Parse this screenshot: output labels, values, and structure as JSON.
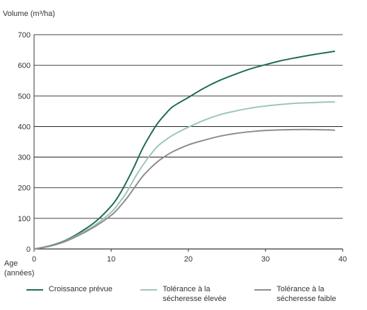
{
  "chart_data": {
    "type": "line",
    "ylabel": "Volume (m³/ha)",
    "xlabel": "Age\n(années)",
    "xlim": [
      0,
      40
    ],
    "ylim": [
      0,
      700
    ],
    "x_ticks": [
      "0",
      "10",
      "20",
      "30",
      "40"
    ],
    "y_ticks": [
      "0",
      "100",
      "200",
      "300",
      "400",
      "500",
      "600",
      "700"
    ],
    "grid": "horizontal",
    "legend_position": "bottom",
    "series": [
      {
        "name": "Croissance prévue",
        "color": "#1f6b53",
        "x": [
          0,
          2,
          4,
          6,
          8,
          10,
          11,
          12,
          13,
          14,
          15,
          16,
          17,
          18,
          20,
          22,
          24,
          26,
          28,
          30,
          32,
          34,
          36,
          38,
          39
        ],
        "y": [
          0,
          10,
          27,
          55,
          90,
          140,
          175,
          220,
          270,
          325,
          370,
          410,
          440,
          465,
          495,
          525,
          550,
          570,
          588,
          602,
          615,
          625,
          634,
          642,
          646
        ]
      },
      {
        "name": "Tolérance à la\nsécheresse élevée",
        "color": "#9dc5b8",
        "x": [
          0,
          2,
          4,
          6,
          8,
          10,
          11,
          12,
          13,
          14,
          15,
          16,
          17,
          18,
          20,
          22,
          24,
          26,
          28,
          30,
          32,
          34,
          36,
          38,
          39
        ],
        "y": [
          0,
          9,
          25,
          50,
          80,
          120,
          150,
          185,
          230,
          270,
          305,
          335,
          355,
          372,
          398,
          420,
          438,
          450,
          460,
          467,
          472,
          476,
          478,
          480,
          480
        ]
      },
      {
        "name": "Tolérance à la\nsécheresse faible",
        "color": "#8c8c8c",
        "x": [
          0,
          2,
          4,
          6,
          8,
          10,
          11,
          12,
          13,
          14,
          15,
          16,
          17,
          18,
          20,
          22,
          24,
          26,
          28,
          30,
          32,
          34,
          36,
          38,
          39
        ],
        "y": [
          0,
          9,
          24,
          47,
          75,
          110,
          135,
          165,
          200,
          235,
          262,
          285,
          303,
          318,
          340,
          355,
          368,
          377,
          383,
          387,
          389,
          390,
          390,
          389,
          388
        ]
      }
    ]
  }
}
